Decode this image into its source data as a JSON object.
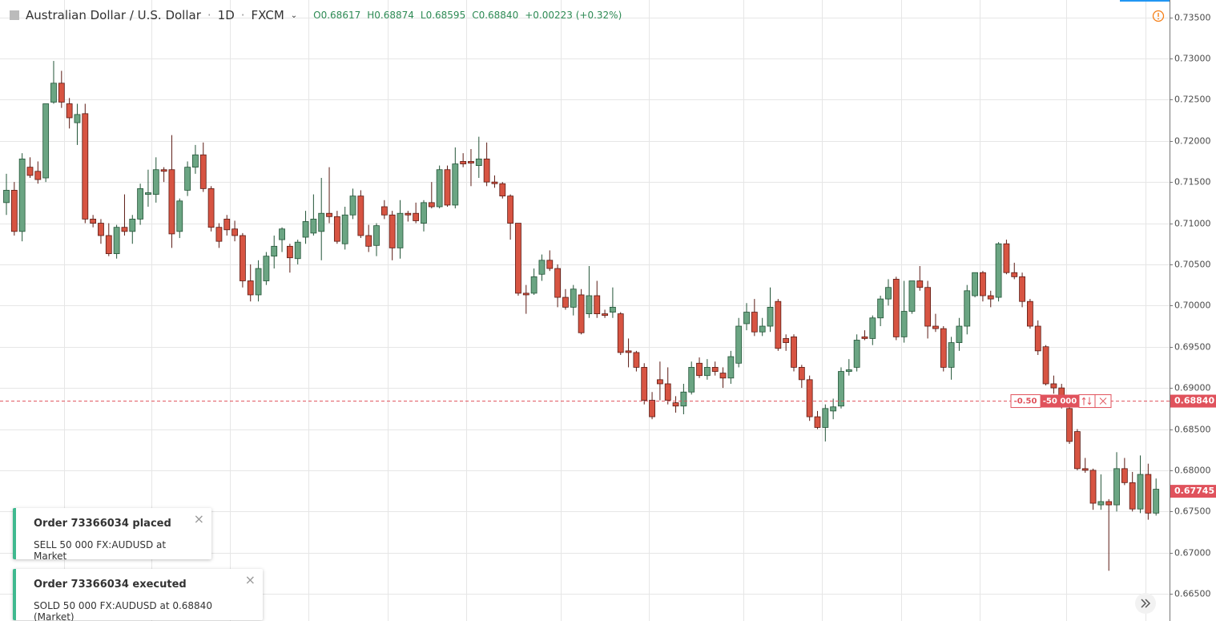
{
  "header": {
    "symbol": "Australian Dollar / U.S. Dollar",
    "interval": "1D",
    "source": "FXCM",
    "open": "O0.68617",
    "high": "H0.68874",
    "low": "L0.68595",
    "close": "C0.68840",
    "change": "+0.00223 (+0.32%)"
  },
  "chart_data": {
    "type": "candlestick",
    "up_color": "#6ba583",
    "up_border": "#225437",
    "down_color": "#d75442",
    "down_border": "#5b1a13",
    "grid": true,
    "ylim": [
      0.6617,
      0.7371
    ],
    "yticks": [
      {
        "value": 0.735,
        "label": "0.73500"
      },
      {
        "value": 0.73,
        "label": "0.73000"
      },
      {
        "value": 0.725,
        "label": "0.72500"
      },
      {
        "value": 0.72,
        "label": "0.72000"
      },
      {
        "value": 0.715,
        "label": "0.71500"
      },
      {
        "value": 0.71,
        "label": "0.71000"
      },
      {
        "value": 0.705,
        "label": "0.70500"
      },
      {
        "value": 0.7,
        "label": "0.70000"
      },
      {
        "value": 0.695,
        "label": "0.69500"
      },
      {
        "value": 0.69,
        "label": "0.69000"
      },
      {
        "value": 0.685,
        "label": "0.68500"
      },
      {
        "value": 0.68,
        "label": "0.68000"
      },
      {
        "value": 0.675,
        "label": "0.67500"
      },
      {
        "value": 0.67,
        "label": "0.67000"
      },
      {
        "value": 0.665,
        "label": "0.66500"
      }
    ],
    "open": [
      0.7125,
      0.714,
      0.709,
      0.7168,
      0.7163,
      0.7155,
      0.7247,
      0.727,
      0.7245,
      0.7222,
      0.7233,
      0.7105,
      0.71,
      0.7085,
      0.7063,
      0.7095,
      0.709,
      0.7105,
      0.7135,
      0.7135,
      0.7165,
      0.7165,
      0.709,
      0.714,
      0.7168,
      0.7183,
      0.7142,
      0.7095,
      0.7105,
      0.7093,
      0.7085,
      0.703,
      0.7013,
      0.703,
      0.706,
      0.708,
      0.7072,
      0.7057,
      0.7083,
      0.7088,
      0.709,
      0.7112,
      0.7108,
      0.7075,
      0.711,
      0.7133,
      0.7085,
      0.7073,
      0.712,
      0.711,
      0.707,
      0.7112,
      0.7112,
      0.71,
      0.7125,
      0.712,
      0.7165,
      0.7122,
      0.7175,
      0.7175,
      0.717,
      0.7178,
      0.715,
      0.7148,
      0.7133,
      0.71,
      0.7015,
      0.7015,
      0.7038,
      0.7055,
      0.7045,
      0.701,
      0.6998,
      0.7013,
      0.699,
      0.7012,
      0.699,
      0.6992,
      0.699,
      0.6945,
      0.6943,
      0.6925,
      0.6885,
      0.691,
      0.6905,
      0.6882,
      0.6878,
      0.6895,
      0.693,
      0.6915,
      0.6925,
      0.6918,
      0.6912,
      0.693,
      0.6978,
      0.6992,
      0.6968,
      0.6975,
      0.7005,
      0.696,
      0.6962,
      0.6925,
      0.691,
      0.6865,
      0.6852,
      0.6872,
      0.6878,
      0.692,
      0.6925,
      0.6962,
      0.696,
      0.6985,
      0.7008,
      0.7032,
      0.6962,
      0.6993,
      0.703,
      0.7022,
      0.6975,
      0.6972,
      0.6925,
      0.6955,
      0.6975,
      0.7012,
      0.704,
      0.7012,
      0.701,
      0.7075,
      0.704,
      0.7035,
      0.7005,
      0.6975,
      0.695,
      0.6905,
      0.69,
      0.6875,
      0.6847,
      0.6802,
      0.68,
      0.6758,
      0.6762,
      0.6758,
      0.6802,
      0.6785,
      0.6753,
      0.6795,
      0.6748
    ],
    "high": [
      0.716,
      0.715,
      0.7185,
      0.718,
      0.7175,
      0.7245,
      0.7297,
      0.7285,
      0.7252,
      0.7245,
      0.7245,
      0.711,
      0.7105,
      0.71,
      0.7098,
      0.7135,
      0.711,
      0.7148,
      0.7165,
      0.718,
      0.7168,
      0.7207,
      0.713,
      0.7175,
      0.7195,
      0.7198,
      0.7145,
      0.71,
      0.711,
      0.7103,
      0.7088,
      0.705,
      0.7055,
      0.7065,
      0.7085,
      0.7095,
      0.7075,
      0.708,
      0.7115,
      0.7135,
      0.7155,
      0.7168,
      0.7115,
      0.712,
      0.7142,
      0.714,
      0.7098,
      0.71,
      0.7128,
      0.7115,
      0.7128,
      0.7115,
      0.7125,
      0.7128,
      0.715,
      0.717,
      0.717,
      0.7192,
      0.7185,
      0.719,
      0.7205,
      0.7198,
      0.7158,
      0.715,
      0.7135,
      0.71,
      0.7025,
      0.7045,
      0.7062,
      0.7067,
      0.705,
      0.702,
      0.7025,
      0.702,
      0.7048,
      0.703,
      0.6995,
      0.7022,
      0.6992,
      0.696,
      0.6945,
      0.693,
      0.6895,
      0.6932,
      0.6925,
      0.689,
      0.6905,
      0.6932,
      0.6937,
      0.6935,
      0.6932,
      0.6925,
      0.6945,
      0.6985,
      0.7003,
      0.7008,
      0.6985,
      0.7022,
      0.7008,
      0.6965,
      0.6965,
      0.6928,
      0.6915,
      0.6872,
      0.688,
      0.6887,
      0.6925,
      0.6935,
      0.6965,
      0.697,
      0.6988,
      0.7012,
      0.7032,
      0.7035,
      0.703,
      0.703,
      0.7048,
      0.703,
      0.699,
      0.6975,
      0.6962,
      0.6985,
      0.7025,
      0.704,
      0.7042,
      0.7018,
      0.7077,
      0.708,
      0.7052,
      0.704,
      0.7008,
      0.6982,
      0.6952,
      0.6915,
      0.6905,
      0.688,
      0.685,
      0.6815,
      0.6802,
      0.6795,
      0.6765,
      0.6822,
      0.6815,
      0.6798,
      0.6818,
      0.6808,
      0.679
    ],
    "low": [
      0.711,
      0.7085,
      0.7078,
      0.7155,
      0.7148,
      0.715,
      0.7245,
      0.724,
      0.7215,
      0.7195,
      0.71,
      0.7095,
      0.7075,
      0.706,
      0.7057,
      0.7085,
      0.7075,
      0.7098,
      0.712,
      0.7125,
      0.715,
      0.707,
      0.7082,
      0.7133,
      0.716,
      0.7138,
      0.709,
      0.707,
      0.7085,
      0.7078,
      0.7022,
      0.7005,
      0.7005,
      0.7025,
      0.7045,
      0.7065,
      0.704,
      0.705,
      0.7075,
      0.7085,
      0.7055,
      0.71,
      0.7075,
      0.7068,
      0.7105,
      0.7082,
      0.7065,
      0.706,
      0.7105,
      0.7055,
      0.7057,
      0.7102,
      0.71,
      0.709,
      0.7118,
      0.7118,
      0.712,
      0.7118,
      0.7168,
      0.7145,
      0.7155,
      0.7145,
      0.7143,
      0.713,
      0.708,
      0.7012,
      0.699,
      0.7013,
      0.703,
      0.7042,
      0.6998,
      0.6995,
      0.6988,
      0.6965,
      0.6985,
      0.6985,
      0.6985,
      0.6985,
      0.694,
      0.6925,
      0.692,
      0.688,
      0.6862,
      0.6885,
      0.688,
      0.687,
      0.6868,
      0.6892,
      0.6912,
      0.691,
      0.6915,
      0.69,
      0.6905,
      0.6925,
      0.697,
      0.6963,
      0.6963,
      0.6968,
      0.6945,
      0.6945,
      0.692,
      0.69,
      0.686,
      0.685,
      0.6835,
      0.6862,
      0.6875,
      0.6915,
      0.692,
      0.6958,
      0.6952,
      0.6975,
      0.7,
      0.6958,
      0.6955,
      0.699,
      0.7018,
      0.696,
      0.6968,
      0.692,
      0.691,
      0.6945,
      0.6965,
      0.701,
      0.7005,
      0.6998,
      0.7005,
      0.7038,
      0.7032,
      0.6998,
      0.6972,
      0.694,
      0.6903,
      0.6893,
      0.6875,
      0.6832,
      0.68,
      0.6797,
      0.6752,
      0.6752,
      0.6678,
      0.675,
      0.6782,
      0.675,
      0.6748,
      0.674,
      0.6745
    ],
    "close": [
      0.714,
      0.709,
      0.7178,
      0.7158,
      0.7153,
      0.7245,
      0.727,
      0.7247,
      0.7228,
      0.7232,
      0.7105,
      0.71,
      0.7085,
      0.7063,
      0.7095,
      0.709,
      0.7105,
      0.7142,
      0.7137,
      0.7165,
      0.7163,
      0.7087,
      0.7127,
      0.7168,
      0.7183,
      0.7142,
      0.7095,
      0.7078,
      0.7092,
      0.7085,
      0.703,
      0.7013,
      0.7045,
      0.706,
      0.7072,
      0.7093,
      0.7058,
      0.7077,
      0.7102,
      0.7105,
      0.7112,
      0.7108,
      0.7078,
      0.711,
      0.7133,
      0.7085,
      0.7072,
      0.7097,
      0.711,
      0.707,
      0.7112,
      0.711,
      0.7103,
      0.7125,
      0.712,
      0.7165,
      0.7122,
      0.7172,
      0.7172,
      0.7173,
      0.7178,
      0.715,
      0.7148,
      0.7133,
      0.71,
      0.7015,
      0.7013,
      0.7035,
      0.7055,
      0.7045,
      0.701,
      0.6998,
      0.702,
      0.6967,
      0.7012,
      0.699,
      0.6988,
      0.6998,
      0.6943,
      0.6943,
      0.6925,
      0.6885,
      0.6865,
      0.6905,
      0.6885,
      0.6878,
      0.6895,
      0.6925,
      0.6915,
      0.6925,
      0.692,
      0.6912,
      0.6938,
      0.6975,
      0.6992,
      0.6968,
      0.6975,
      0.6998,
      0.6948,
      0.6955,
      0.6925,
      0.691,
      0.6865,
      0.6852,
      0.6875,
      0.6877,
      0.692,
      0.6922,
      0.6958,
      0.696,
      0.6985,
      0.7008,
      0.7022,
      0.6962,
      0.6993,
      0.703,
      0.7022,
      0.6975,
      0.6972,
      0.6925,
      0.6955,
      0.6975,
      0.7018,
      0.704,
      0.7012,
      0.7008,
      0.7075,
      0.704,
      0.7035,
      0.7005,
      0.6975,
      0.6945,
      0.6905,
      0.69,
      0.6877,
      0.6835,
      0.6802,
      0.68,
      0.676,
      0.6762,
      0.6758,
      0.6802,
      0.6785,
      0.6753,
      0.6795,
      0.6748,
      0.6777
    ],
    "position": {
      "price": 0.6884,
      "price_label": "0.68840",
      "pnl": "-0.50",
      "quantity": "-50 000",
      "color": "#e0525c"
    },
    "last_price": {
      "value": 0.67745,
      "label": "0.67745",
      "color": "#e0525c"
    }
  },
  "notifications": [
    {
      "title": "Order 73366034 placed",
      "body": "SELL 50 000 FX:AUDUSD at Market"
    },
    {
      "title": "Order 73366034 executed",
      "body": "SOLD 50 000 FX:AUDUSD at 0.68840 (Market)"
    }
  ]
}
